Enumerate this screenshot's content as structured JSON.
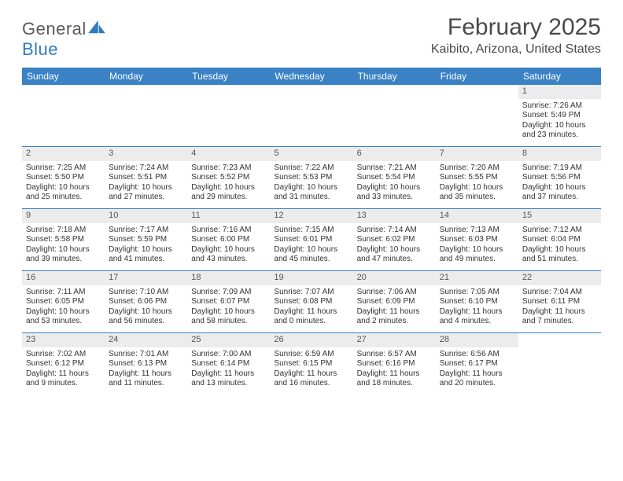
{
  "brand": {
    "name_gray": "General",
    "name_blue": "Blue"
  },
  "title": "February 2025",
  "location": "Kaibito, Arizona, United States",
  "colors": {
    "header_bar": "#3a82c4",
    "daynum_bg": "#ececec",
    "week_divider": "#3a82c4",
    "text": "#333333",
    "title_text": "#4a4a4a",
    "brand_gray": "#5a5a5a",
    "brand_blue": "#2f7bbf"
  },
  "day_names": [
    "Sunday",
    "Monday",
    "Tuesday",
    "Wednesday",
    "Thursday",
    "Friday",
    "Saturday"
  ],
  "weeks": [
    [
      null,
      null,
      null,
      null,
      null,
      null,
      {
        "n": "1",
        "sunrise": "7:26 AM",
        "sunset": "5:49 PM",
        "daylight": "10 hours and 23 minutes."
      }
    ],
    [
      {
        "n": "2",
        "sunrise": "7:25 AM",
        "sunset": "5:50 PM",
        "daylight": "10 hours and 25 minutes."
      },
      {
        "n": "3",
        "sunrise": "7:24 AM",
        "sunset": "5:51 PM",
        "daylight": "10 hours and 27 minutes."
      },
      {
        "n": "4",
        "sunrise": "7:23 AM",
        "sunset": "5:52 PM",
        "daylight": "10 hours and 29 minutes."
      },
      {
        "n": "5",
        "sunrise": "7:22 AM",
        "sunset": "5:53 PM",
        "daylight": "10 hours and 31 minutes."
      },
      {
        "n": "6",
        "sunrise": "7:21 AM",
        "sunset": "5:54 PM",
        "daylight": "10 hours and 33 minutes."
      },
      {
        "n": "7",
        "sunrise": "7:20 AM",
        "sunset": "5:55 PM",
        "daylight": "10 hours and 35 minutes."
      },
      {
        "n": "8",
        "sunrise": "7:19 AM",
        "sunset": "5:56 PM",
        "daylight": "10 hours and 37 minutes."
      }
    ],
    [
      {
        "n": "9",
        "sunrise": "7:18 AM",
        "sunset": "5:58 PM",
        "daylight": "10 hours and 39 minutes."
      },
      {
        "n": "10",
        "sunrise": "7:17 AM",
        "sunset": "5:59 PM",
        "daylight": "10 hours and 41 minutes."
      },
      {
        "n": "11",
        "sunrise": "7:16 AM",
        "sunset": "6:00 PM",
        "daylight": "10 hours and 43 minutes."
      },
      {
        "n": "12",
        "sunrise": "7:15 AM",
        "sunset": "6:01 PM",
        "daylight": "10 hours and 45 minutes."
      },
      {
        "n": "13",
        "sunrise": "7:14 AM",
        "sunset": "6:02 PM",
        "daylight": "10 hours and 47 minutes."
      },
      {
        "n": "14",
        "sunrise": "7:13 AM",
        "sunset": "6:03 PM",
        "daylight": "10 hours and 49 minutes."
      },
      {
        "n": "15",
        "sunrise": "7:12 AM",
        "sunset": "6:04 PM",
        "daylight": "10 hours and 51 minutes."
      }
    ],
    [
      {
        "n": "16",
        "sunrise": "7:11 AM",
        "sunset": "6:05 PM",
        "daylight": "10 hours and 53 minutes."
      },
      {
        "n": "17",
        "sunrise": "7:10 AM",
        "sunset": "6:06 PM",
        "daylight": "10 hours and 56 minutes."
      },
      {
        "n": "18",
        "sunrise": "7:09 AM",
        "sunset": "6:07 PM",
        "daylight": "10 hours and 58 minutes."
      },
      {
        "n": "19",
        "sunrise": "7:07 AM",
        "sunset": "6:08 PM",
        "daylight": "11 hours and 0 minutes."
      },
      {
        "n": "20",
        "sunrise": "7:06 AM",
        "sunset": "6:09 PM",
        "daylight": "11 hours and 2 minutes."
      },
      {
        "n": "21",
        "sunrise": "7:05 AM",
        "sunset": "6:10 PM",
        "daylight": "11 hours and 4 minutes."
      },
      {
        "n": "22",
        "sunrise": "7:04 AM",
        "sunset": "6:11 PM",
        "daylight": "11 hours and 7 minutes."
      }
    ],
    [
      {
        "n": "23",
        "sunrise": "7:02 AM",
        "sunset": "6:12 PM",
        "daylight": "11 hours and 9 minutes."
      },
      {
        "n": "24",
        "sunrise": "7:01 AM",
        "sunset": "6:13 PM",
        "daylight": "11 hours and 11 minutes."
      },
      {
        "n": "25",
        "sunrise": "7:00 AM",
        "sunset": "6:14 PM",
        "daylight": "11 hours and 13 minutes."
      },
      {
        "n": "26",
        "sunrise": "6:59 AM",
        "sunset": "6:15 PM",
        "daylight": "11 hours and 16 minutes."
      },
      {
        "n": "27",
        "sunrise": "6:57 AM",
        "sunset": "6:16 PM",
        "daylight": "11 hours and 18 minutes."
      },
      {
        "n": "28",
        "sunrise": "6:56 AM",
        "sunset": "6:17 PM",
        "daylight": "11 hours and 20 minutes."
      },
      null
    ]
  ],
  "labels": {
    "sunrise_prefix": "Sunrise: ",
    "sunset_prefix": "Sunset: ",
    "daylight_prefix": "Daylight: "
  }
}
